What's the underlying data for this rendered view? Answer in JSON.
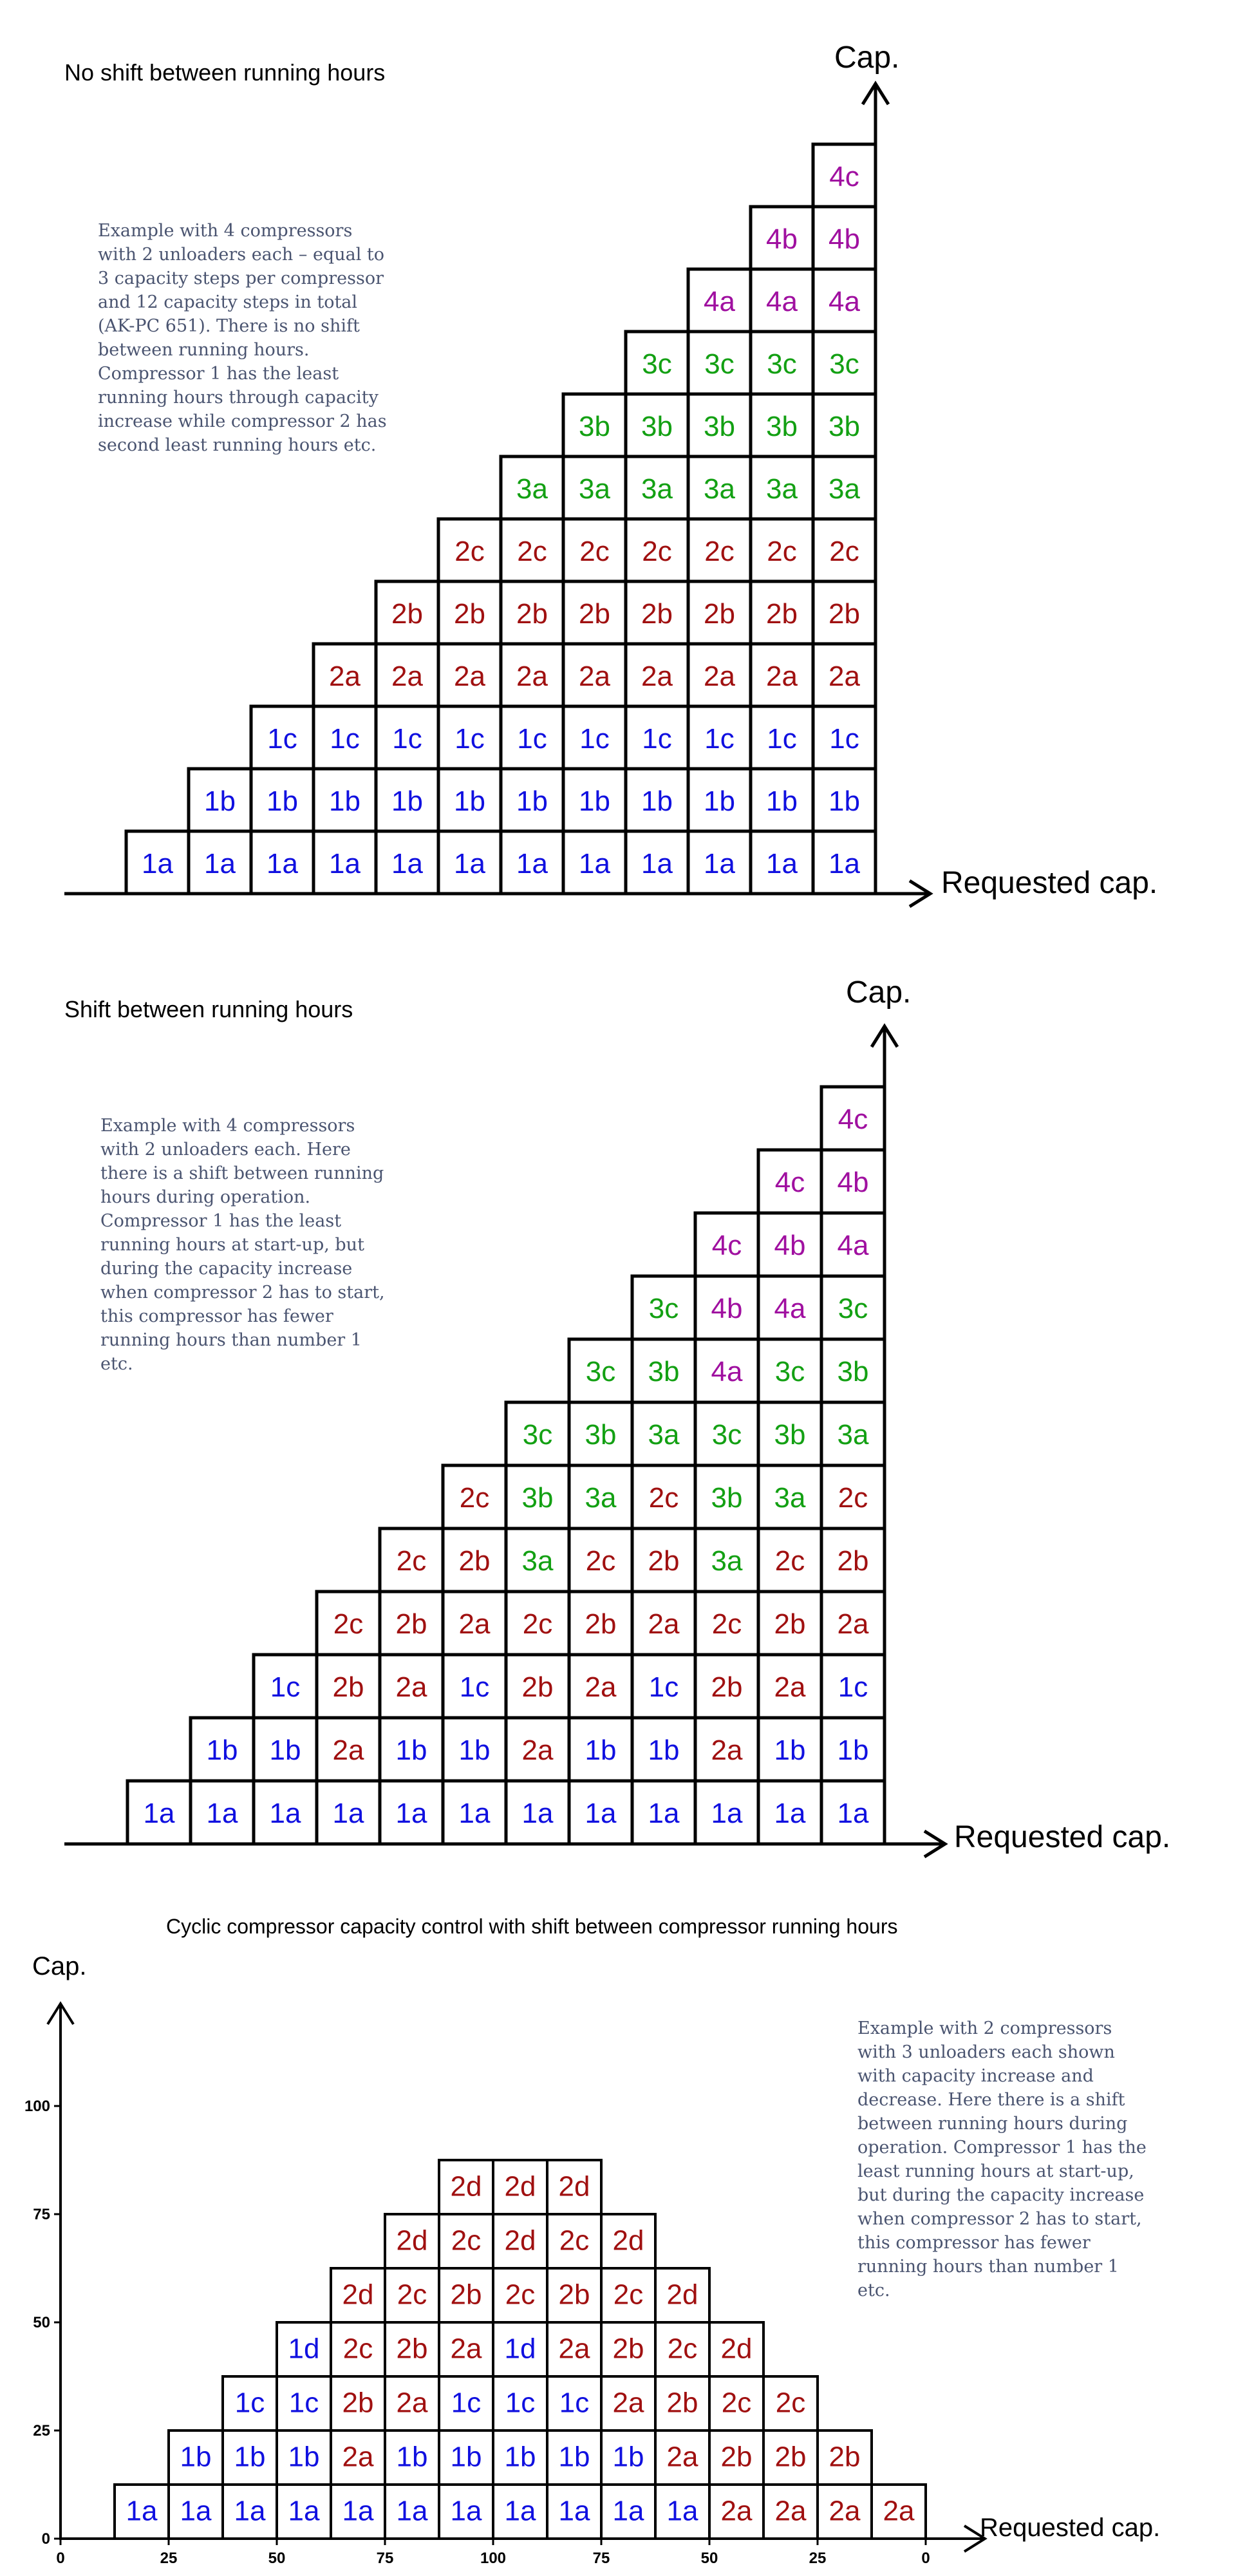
{
  "colors": {
    "1": "#1010e0",
    "2": "#a01010",
    "3": "#13a013",
    "4": "#a010a0",
    "grid": "#000000",
    "desc": "#4a5470"
  },
  "panel1": {
    "title": "No shift between running hours",
    "description": "Example with 4 compressors\nwith 2 unloaders each – equal to\n3 capacity steps per compressor\nand 12 capacity steps in total\n(AK-PC 651). There is no shift\nbetween running hours.\nCompressor 1 has the least\nrunning hours through capacity\nincrease while compressor 2 has\nsecond least running hours etc.",
    "y_axis_label": "Cap.",
    "x_axis_label": "Requested cap.",
    "columns": [
      [
        "1a"
      ],
      [
        "1a",
        "1b"
      ],
      [
        "1a",
        "1b",
        "1c"
      ],
      [
        "1a",
        "1b",
        "1c",
        "2a"
      ],
      [
        "1a",
        "1b",
        "1c",
        "2a",
        "2b"
      ],
      [
        "1a",
        "1b",
        "1c",
        "2a",
        "2b",
        "2c"
      ],
      [
        "1a",
        "1b",
        "1c",
        "2a",
        "2b",
        "2c",
        "3a"
      ],
      [
        "1a",
        "1b",
        "1c",
        "2a",
        "2b",
        "2c",
        "3a",
        "3b"
      ],
      [
        "1a",
        "1b",
        "1c",
        "2a",
        "2b",
        "2c",
        "3a",
        "3b",
        "3c"
      ],
      [
        "1a",
        "1b",
        "1c",
        "2a",
        "2b",
        "2c",
        "3a",
        "3b",
        "3c",
        "4a"
      ],
      [
        "1a",
        "1b",
        "1c",
        "2a",
        "2b",
        "2c",
        "3a",
        "3b",
        "3c",
        "4a",
        "4b"
      ],
      [
        "1a",
        "1b",
        "1c",
        "2a",
        "2b",
        "2c",
        "3a",
        "3b",
        "3c",
        "4a",
        "4b",
        "4c"
      ]
    ]
  },
  "panel2": {
    "title": "Shift between running hours",
    "description": "Example with 4 compressors\nwith 2 unloaders each. Here\nthere is a shift between running\nhours during operation.\nCompressor 1 has the least\nrunning hours at start-up, but\nduring the capacity increase\nwhen compressor 2 has to start,\nthis compressor has fewer\nrunning hours than number 1\netc.",
    "y_axis_label": "Cap.",
    "x_axis_label": "Requested cap.",
    "columns": [
      [
        "1a"
      ],
      [
        "1a",
        "1b"
      ],
      [
        "1a",
        "1b",
        "1c"
      ],
      [
        "1a",
        "2a",
        "2b",
        "2c"
      ],
      [
        "1a",
        "1b",
        "2a",
        "2b",
        "2c"
      ],
      [
        "1a",
        "1b",
        "1c",
        "2a",
        "2b",
        "2c"
      ],
      [
        "1a",
        "2a",
        "2b",
        "2c",
        "3a",
        "3b",
        "3c"
      ],
      [
        "1a",
        "1b",
        "2a",
        "2b",
        "2c",
        "3a",
        "3b",
        "3c"
      ],
      [
        "1a",
        "1b",
        "1c",
        "2a",
        "2b",
        "2c",
        "3a",
        "3b",
        "3c"
      ],
      [
        "1a",
        "2a",
        "2b",
        "2c",
        "3a",
        "3b",
        "3c",
        "4a",
        "4b",
        "4c"
      ],
      [
        "1a",
        "1b",
        "2a",
        "2b",
        "2c",
        "3a",
        "3b",
        "3c",
        "4a",
        "4b",
        "4c"
      ],
      [
        "1a",
        "1b",
        "1c",
        "2a",
        "2b",
        "2c",
        "3a",
        "3b",
        "3c",
        "4a",
        "4b",
        "4c"
      ]
    ]
  },
  "panel3": {
    "title": "Cyclic compressor capacity control with shift between compressor running hours",
    "description": "Example with 2 compressors\nwith 3 unloaders each shown\nwith capacity increase and\ndecrease. Here there is a shift\nbetween running hours during\noperation. Compressor 1 has the\nleast running hours at start-up,\nbut during the capacity increase\nwhen compressor 2 has to start,\nthis compressor has fewer\nrunning hours than number 1\netc.",
    "y_axis_label": "Cap.",
    "x_axis_label": "Requested cap.",
    "y_ticks": [
      "0",
      "25",
      "50",
      "75",
      "100"
    ],
    "x_ticks": [
      "0",
      "25",
      "50",
      "75",
      "100",
      "75",
      "50",
      "25",
      "0"
    ],
    "columns": [
      [
        "1a"
      ],
      [
        "1a",
        "1b"
      ],
      [
        "1a",
        "1b",
        "1c"
      ],
      [
        "1a",
        "1b",
        "1c",
        "1d"
      ],
      [
        "1a",
        "2a",
        "2b",
        "2c",
        "2d"
      ],
      [
        "1a",
        "1b",
        "2a",
        "2b",
        "2c",
        "2d"
      ],
      [
        "1a",
        "1b",
        "1c",
        "2a",
        "2b",
        "2c",
        "2d"
      ],
      [
        "1a",
        "1b",
        "1c",
        "1d",
        "2c",
        "2d",
        "2d"
      ],
      [
        "1a",
        "1b",
        "1c",
        "2a",
        "2b",
        "2c",
        "2d"
      ],
      [
        "1a",
        "1b",
        "2a",
        "2b",
        "2c",
        "2d"
      ],
      [
        "1a",
        "2a",
        "2b",
        "2c",
        "2d"
      ],
      [
        "2a",
        "2b",
        "2c",
        "2d"
      ],
      [
        "2a",
        "2b",
        "2c"
      ],
      [
        "2a",
        "2b"
      ],
      [
        "2a"
      ]
    ]
  }
}
